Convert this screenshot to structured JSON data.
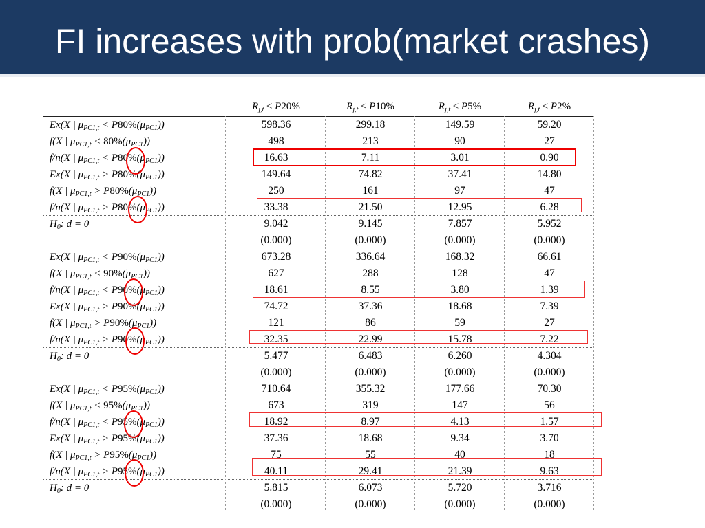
{
  "title": "FI increases with prob(market crashes)",
  "columns": [
    "R_{j,t} ≤ P20%",
    "R_{j,t} ≤ P10%",
    "R_{j,t} ≤ P5%",
    "R_{j,t} ≤ P2%"
  ],
  "column_parts": [
    {
      "pre": "R",
      "sub": "j,t",
      "post": " ≤ P",
      "pct": "20%"
    },
    {
      "pre": "R",
      "sub": "j,t",
      "post": " ≤ P",
      "pct": "10%"
    },
    {
      "pre": "R",
      "sub": "j,t",
      "post": " ≤ P",
      "pct": "5%"
    },
    {
      "pre": "R",
      "sub": "j,t",
      "post": " ≤ P",
      "pct": "2%"
    }
  ],
  "rows": [
    {
      "label": "Ex(X | μPC1,t < P80%(μPC1))",
      "values": [
        "598.36",
        "299.18",
        "149.59",
        "59.20"
      ]
    },
    {
      "label": "f(X | μPC1,t < 80%(μPC1))",
      "values": [
        "498",
        "213",
        "90",
        "27"
      ]
    },
    {
      "label": "f/n(X | μPC1,t < P80%(μPC1))",
      "values": [
        "16.63",
        "7.11",
        "3.01",
        "0.90"
      ]
    },
    {
      "label": "Ex(X | μPC1,t > P80%(μPC1))",
      "values": [
        "149.64",
        "74.82",
        "37.41",
        "14.80"
      ]
    },
    {
      "label": "f(X | μPC1,t > P80%(μPC1))",
      "values": [
        "250",
        "161",
        "97",
        "47"
      ]
    },
    {
      "label": "f/n(X | μPC1,t > P80%(μPC1))",
      "values": [
        "33.38",
        "21.50",
        "12.95",
        "6.28"
      ]
    },
    {
      "label": "H0: d = 0",
      "values": [
        "9.042",
        "9.145",
        "7.857",
        "5.952"
      ]
    },
    {
      "label": "",
      "values": [
        "(0.000)",
        "(0.000)",
        "(0.000)",
        "(0.000)"
      ]
    },
    {
      "label": "Ex(X | μPC1,t < P90%(μPC1))",
      "values": [
        "673.28",
        "336.64",
        "168.32",
        "66.61"
      ]
    },
    {
      "label": "f(X | μPC1,t < 90%(μPC1))",
      "values": [
        "627",
        "288",
        "128",
        "47"
      ]
    },
    {
      "label": "f/n(X | μPC1,t < P90%(μPC1))",
      "values": [
        "18.61",
        "8.55",
        "3.80",
        "1.39"
      ]
    },
    {
      "label": "Ex(X | μPC1,t > P90%(μPC1))",
      "values": [
        "74.72",
        "37.36",
        "18.68",
        "7.39"
      ]
    },
    {
      "label": "f(X | μPC1,t > P90%(μPC1))",
      "values": [
        "121",
        "86",
        "59",
        "27"
      ]
    },
    {
      "label": "f/n(X | μPC1,t > P90%(μPC1))",
      "values": [
        "32.35",
        "22.99",
        "15.78",
        "7.22"
      ]
    },
    {
      "label": "H0: d = 0",
      "values": [
        "5.477",
        "6.483",
        "6.260",
        "4.304"
      ]
    },
    {
      "label": "",
      "values": [
        "(0.000)",
        "(0.000)",
        "(0.000)",
        "(0.000)"
      ]
    },
    {
      "label": "Ex(X | μPC1,t < P95%(μPC1))",
      "values": [
        "710.64",
        "355.32",
        "177.66",
        "70.30"
      ]
    },
    {
      "label": "f(X | μPC1,t < 95%(μPC1))",
      "values": [
        "673",
        "319",
        "147",
        "56"
      ]
    },
    {
      "label": "f/n(X | μPC1,t < P95%(μPC1))",
      "values": [
        "18.92",
        "8.97",
        "4.13",
        "1.57"
      ]
    },
    {
      "label": "Ex(X | μPC1,t > P95%(μPC1))",
      "values": [
        "37.36",
        "18.68",
        "9.34",
        "3.70"
      ]
    },
    {
      "label": "f(X | μPC1,t > P95%(μPC1))",
      "values": [
        "75",
        "55",
        "40",
        "18"
      ]
    },
    {
      "label": "f/n(X | μPC1,t > P95%(μPC1))",
      "values": [
        "40.11",
        "29.41",
        "21.39",
        "9.63"
      ]
    },
    {
      "label": "H0: d = 0",
      "values": [
        "5.815",
        "6.073",
        "5.720",
        "3.716"
      ]
    },
    {
      "label": "",
      "values": [
        "(0.000)",
        "(0.000)",
        "(0.000)",
        "(0.000)"
      ]
    }
  ],
  "colors": {
    "title_bar": "#1c3a63",
    "title_text": "#ffffff",
    "highlight": "#e00000"
  }
}
